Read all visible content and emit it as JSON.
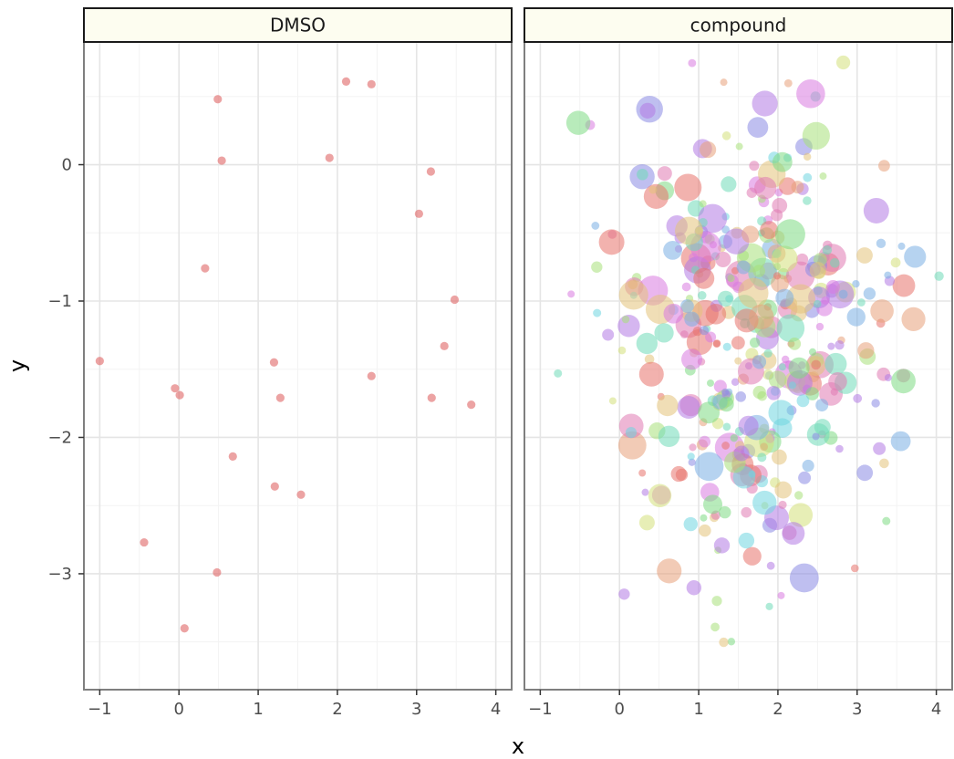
{
  "chart_data": {
    "type": "scatter",
    "xlabel": "x",
    "ylabel": "y",
    "xlim": [
      -1.2,
      4.2
    ],
    "ylim": [
      -3.85,
      0.9
    ],
    "x_ticks": [
      -1,
      0,
      1,
      2,
      3,
      4
    ],
    "y_ticks": [
      -3,
      -2,
      -1,
      0
    ],
    "x_tick_labels": [
      "−1",
      "0",
      "1",
      "2",
      "3",
      "4"
    ],
    "y_tick_labels": [
      "−3",
      "−2",
      "−1",
      "0"
    ],
    "grid": true,
    "legend": "none",
    "panels": [
      {
        "strip": "DMSO",
        "color": "#E06666",
        "points": [
          {
            "x": -1.0,
            "y": -1.44
          },
          {
            "x": -0.44,
            "y": -2.77
          },
          {
            "x": -0.05,
            "y": -1.64
          },
          {
            "x": 0.01,
            "y": -1.69
          },
          {
            "x": 0.07,
            "y": -3.4
          },
          {
            "x": 0.33,
            "y": -0.76
          },
          {
            "x": 0.48,
            "y": -2.99
          },
          {
            "x": 0.49,
            "y": 0.48
          },
          {
            "x": 0.54,
            "y": 0.03
          },
          {
            "x": 0.68,
            "y": -2.14
          },
          {
            "x": 1.2,
            "y": -1.45
          },
          {
            "x": 1.21,
            "y": -2.36
          },
          {
            "x": 1.28,
            "y": -1.71
          },
          {
            "x": 1.54,
            "y": -2.42
          },
          {
            "x": 1.9,
            "y": 0.05
          },
          {
            "x": 2.11,
            "y": 0.61
          },
          {
            "x": 2.43,
            "y": 0.59
          },
          {
            "x": 2.43,
            "y": -1.55
          },
          {
            "x": 3.03,
            "y": -0.36
          },
          {
            "x": 3.18,
            "y": -0.05
          },
          {
            "x": 3.19,
            "y": -1.71
          },
          {
            "x": 3.35,
            "y": -1.33
          },
          {
            "x": 3.48,
            "y": -0.99
          },
          {
            "x": 3.69,
            "y": -1.76
          }
        ]
      },
      {
        "strip": "compound",
        "palette": [
          "#E8736C",
          "#E8A07A",
          "#E3C37A",
          "#D4E07A",
          "#A8E07A",
          "#7DDB84",
          "#6FDBB8",
          "#70D6E0",
          "#7AAEE3",
          "#8A8AE3",
          "#B37AE3",
          "#D97AE0",
          "#E07AB3"
        ],
        "point_count": 400,
        "x_mean": 1.72,
        "x_sd": 0.85,
        "y_mean": -1.32,
        "y_sd": 0.88
      }
    ]
  }
}
